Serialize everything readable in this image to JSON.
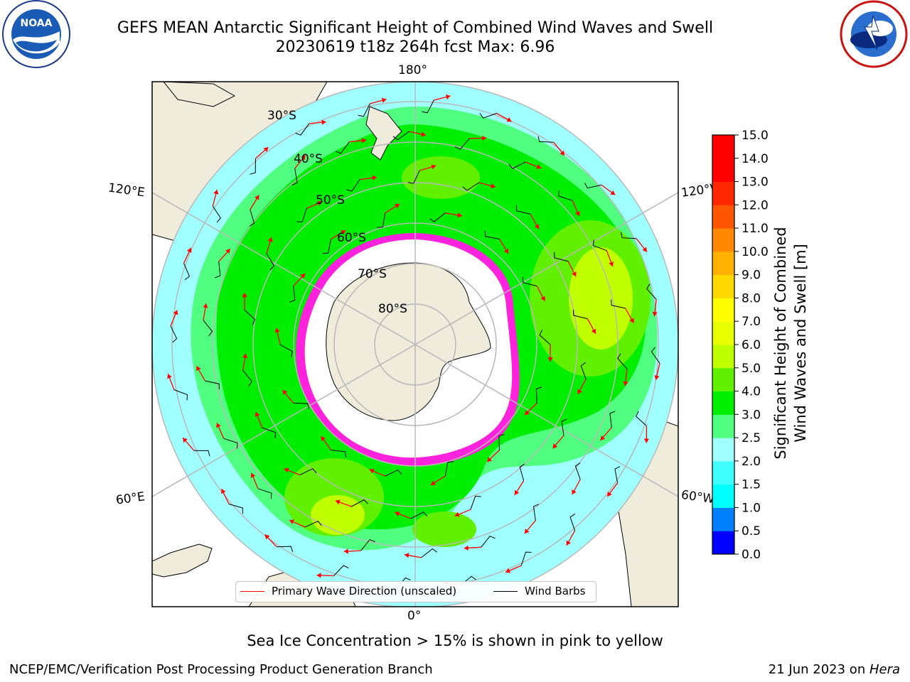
{
  "header": {
    "title_line1": "GEFS MEAN Antarctic Significant Height of Combined Wind Waves and Swell",
    "title_line2": "20230619 t18z 264h fcst   Max: 6.96"
  },
  "logos": {
    "noaa": {
      "text": "NOAA",
      "ring_text": "NATIONAL OCEANIC AND ATMOSPHERIC ADMINISTRATION · U.S. DEPARTMENT OF COMMERCE"
    },
    "nws": {
      "ring_text": "NATIONAL WEATHER SERVICE"
    }
  },
  "map": {
    "lon_labels": {
      "top": "180°",
      "bottom": "0°",
      "left_upper": "120°E",
      "left_lower": "60°E",
      "right_upper": "120°W",
      "right_lower": "60°W"
    },
    "lat_labels": [
      "30°S",
      "40°S",
      "50°S",
      "60°S",
      "70°S",
      "80°S"
    ],
    "colors": {
      "land": "#efecdc",
      "ice": "#ffffff",
      "ice_edge": "#ff22dd",
      "wave_arrow": "#ff0000",
      "wind_barb": "#000000",
      "grid": "#b8b8b8"
    },
    "legend": {
      "wave_label": "Primary Wave Direction (unscaled)",
      "barb_label": "Wind Barbs"
    }
  },
  "colorbar": {
    "tick_labels": [
      "0.0",
      "0.5",
      "1.0",
      "1.5",
      "2.0",
      "2.5",
      "3.0",
      "4.0",
      "5.0",
      "6.0",
      "7.0",
      "8.0",
      "9.0",
      "10.0",
      "11.0",
      "12.0",
      "13.0",
      "14.0",
      "15.0"
    ],
    "colors": [
      "#0000ff",
      "#0080ff",
      "#00ffff",
      "#40ffff",
      "#a0ffff",
      "#50ff80",
      "#00ee00",
      "#60f000",
      "#c0ff00",
      "#e8ff00",
      "#ffff00",
      "#ffd800",
      "#ffb000",
      "#ff8800",
      "#ff5500",
      "#ff2800",
      "#ff0000",
      "#ff0000"
    ],
    "label_line1": "Significant Height of Combined",
    "label_line2": "Wind Waves and Swell [m]"
  },
  "notes": {
    "sea_ice": "Sea Ice Concentration > 15% is shown in pink to yellow"
  },
  "footer": {
    "left": "NCEP/EMC/Verification Post Processing Product Generation Branch",
    "right_date": "21 Jun 2023 on ",
    "right_host": "Hera"
  }
}
